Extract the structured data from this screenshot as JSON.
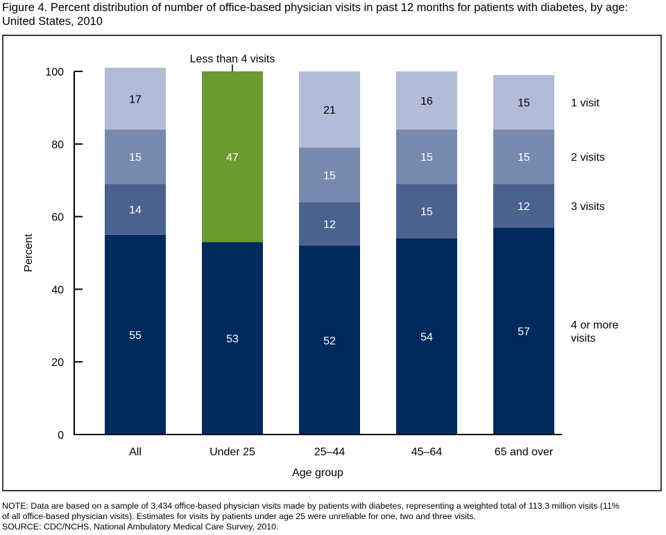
{
  "figure": {
    "title": "Figure 4. Percent distribution of number of office-based physician visits in past 12 months for patients with diabetes, by age: United States, 2010",
    "note_lines": [
      "NOTE: Data are based on a sample of 3,434 office-based physician visits made by patients with diabetes, representing a weighted total of 113.3 million visits (11%",
      "of all office-based physician visits). Estimates for visits by patients under age 25 were unreliable for one, two and three visits.",
      "SOURCE: CDC/NCHS, National Ambulatory Medical Care Survey, 2010."
    ]
  },
  "chart_data": {
    "type": "bar",
    "stacked": true,
    "title": "Figure 4. Percent distribution of number of office-based physician visits in past 12 months for patients with diabetes, by age: United States, 2010",
    "xlabel": "Age group",
    "ylabel": "Percent",
    "ylim": [
      0,
      100
    ],
    "yticks": [
      0,
      20,
      40,
      60,
      80,
      100
    ],
    "grid": false,
    "legend": "right (labels beside last bar)",
    "categories": [
      "All",
      "Under 25",
      "25–44",
      "45–64",
      "65 and over"
    ],
    "series": [
      {
        "name": "4 or more visits",
        "color": "#002a5c",
        "label_color": "#ffffff",
        "values": [
          55,
          53,
          52,
          54,
          57
        ]
      },
      {
        "name": "3 visits",
        "color": "#4b628f",
        "label_color": "#ffffff",
        "values": [
          14,
          null,
          12,
          15,
          12
        ]
      },
      {
        "name": "2 visits",
        "color": "#7889ae",
        "label_color": "#ffffff",
        "values": [
          15,
          null,
          15,
          15,
          15
        ]
      },
      {
        "name": "1 visit",
        "color": "#b3bcd6",
        "label_color": "#000000",
        "values": [
          17,
          null,
          21,
          16,
          15
        ]
      }
    ],
    "combined_segments": [
      {
        "category": "Under 25",
        "name": "Less than 4 visits",
        "value": 47,
        "color": "#6a9a30",
        "label_color": "#ffffff",
        "annotation": "Less than 4 visits"
      }
    ],
    "legend_labels": [
      {
        "series": "1 visit",
        "lines": [
          "1 visit"
        ]
      },
      {
        "series": "2 visits",
        "lines": [
          "2 visits"
        ]
      },
      {
        "series": "3 visits",
        "lines": [
          "3 visits"
        ]
      },
      {
        "series": "4 or more visits",
        "lines": [
          "4 or more",
          "visits"
        ]
      }
    ]
  }
}
